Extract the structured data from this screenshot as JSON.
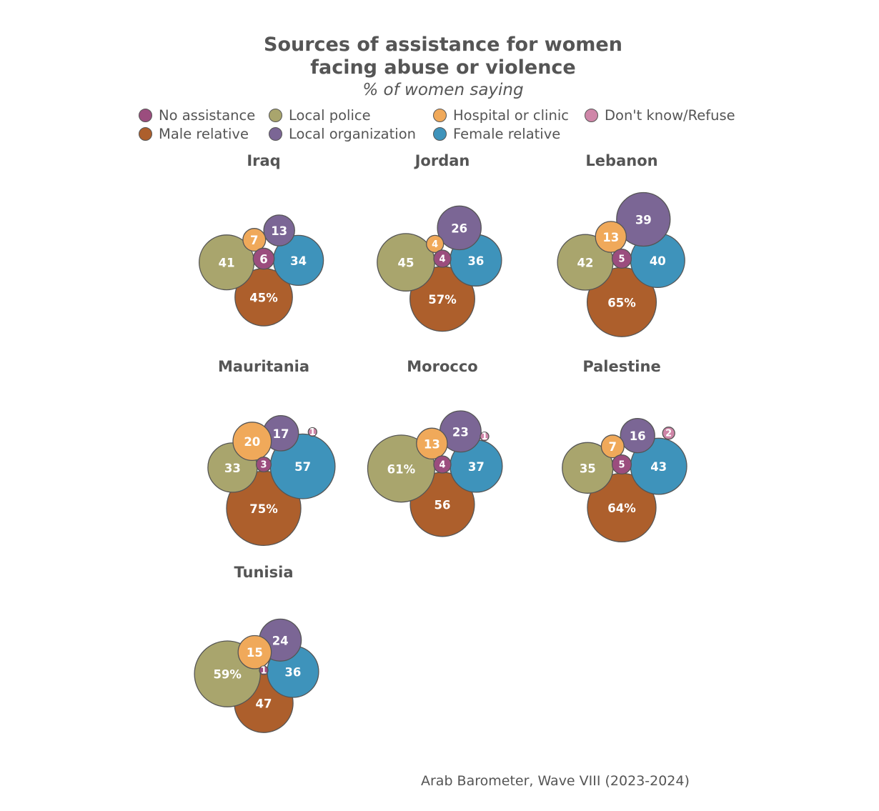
{
  "chart_data": {
    "type": "bubble",
    "title": "Sources of assistance for women facing abuse or violence",
    "title_lines": [
      "Sources of assistance for women",
      "facing abuse or violence"
    ],
    "subtitle": "% of women saying",
    "source": "Arab Barometer, Wave VIII (2023-2024)",
    "legend_position": "top",
    "categories": [
      {
        "key": "no_assistance",
        "label": "No assistance",
        "color": "#9B4D7E"
      },
      {
        "key": "male_relative",
        "label": "Male relative",
        "color": "#AD5F2C"
      },
      {
        "key": "local_police",
        "label": "Local police",
        "color": "#A9A56D"
      },
      {
        "key": "local_organization",
        "label": "Local organization",
        "color": "#7B6695"
      },
      {
        "key": "hospital_or_clinic",
        "label": "Hospital or clinic",
        "color": "#F0A95A"
      },
      {
        "key": "female_relative",
        "label": "Female relative",
        "color": "#3E93BB"
      },
      {
        "key": "dont_know_refuse",
        "label": "Don't know/Refuse",
        "color": "#CF86A8"
      }
    ],
    "panels": [
      {
        "country": "Iraq",
        "values": {
          "male_relative": 45,
          "local_police": 41,
          "female_relative": 34,
          "local_organization": 13,
          "hospital_or_clinic": 7,
          "no_assistance": 6
        },
        "labels": {
          "male_relative": "45%",
          "local_police": "41",
          "female_relative": "34",
          "local_organization": "13",
          "hospital_or_clinic": "7",
          "no_assistance": "6"
        }
      },
      {
        "country": "Jordan",
        "values": {
          "male_relative": 57,
          "local_police": 45,
          "female_relative": 36,
          "local_organization": 26,
          "hospital_or_clinic": 4,
          "no_assistance": 4
        },
        "labels": {
          "male_relative": "57%",
          "local_police": "45",
          "female_relative": "36",
          "local_organization": "26",
          "hospital_or_clinic": "4",
          "no_assistance": "4"
        }
      },
      {
        "country": "Lebanon",
        "values": {
          "male_relative": 65,
          "local_police": 42,
          "female_relative": 40,
          "local_organization": 39,
          "hospital_or_clinic": 13,
          "no_assistance": 5
        },
        "labels": {
          "male_relative": "65%",
          "local_police": "42",
          "female_relative": "40",
          "local_organization": "39",
          "hospital_or_clinic": "13",
          "no_assistance": "5"
        }
      },
      {
        "country": "Mauritania",
        "values": {
          "male_relative": 75,
          "local_police": 33,
          "female_relative": 57,
          "local_organization": 17,
          "hospital_or_clinic": 20,
          "no_assistance": 3,
          "dont_know_refuse": 1
        },
        "labels": {
          "male_relative": "75%",
          "local_police": "33",
          "female_relative": "57",
          "local_organization": "17",
          "hospital_or_clinic": "20",
          "no_assistance": "3",
          "dont_know_refuse": "1"
        }
      },
      {
        "country": "Morocco",
        "values": {
          "male_relative": 56,
          "local_police": 61,
          "female_relative": 37,
          "local_organization": 23,
          "hospital_or_clinic": 13,
          "no_assistance": 4,
          "dont_know_refuse": 1
        },
        "labels": {
          "male_relative": "56",
          "local_police": "61%",
          "female_relative": "37",
          "local_organization": "23",
          "hospital_or_clinic": "13",
          "no_assistance": "4",
          "dont_know_refuse": "1"
        }
      },
      {
        "country": "Palestine",
        "values": {
          "male_relative": 64,
          "local_police": 35,
          "female_relative": 43,
          "local_organization": 16,
          "hospital_or_clinic": 7,
          "no_assistance": 5,
          "dont_know_refuse": 2
        },
        "labels": {
          "male_relative": "64%",
          "local_police": "35",
          "female_relative": "43",
          "local_organization": "16",
          "hospital_or_clinic": "7",
          "no_assistance": "5",
          "dont_know_refuse": "2"
        }
      },
      {
        "country": "Tunisia",
        "values": {
          "male_relative": 47,
          "local_police": 59,
          "female_relative": 36,
          "local_organization": 24,
          "hospital_or_clinic": 15,
          "no_assistance": 1
        },
        "labels": {
          "male_relative": "47",
          "local_police": "59%",
          "female_relative": "36",
          "local_organization": "24",
          "hospital_or_clinic": "15",
          "no_assistance": "1"
        }
      }
    ]
  }
}
